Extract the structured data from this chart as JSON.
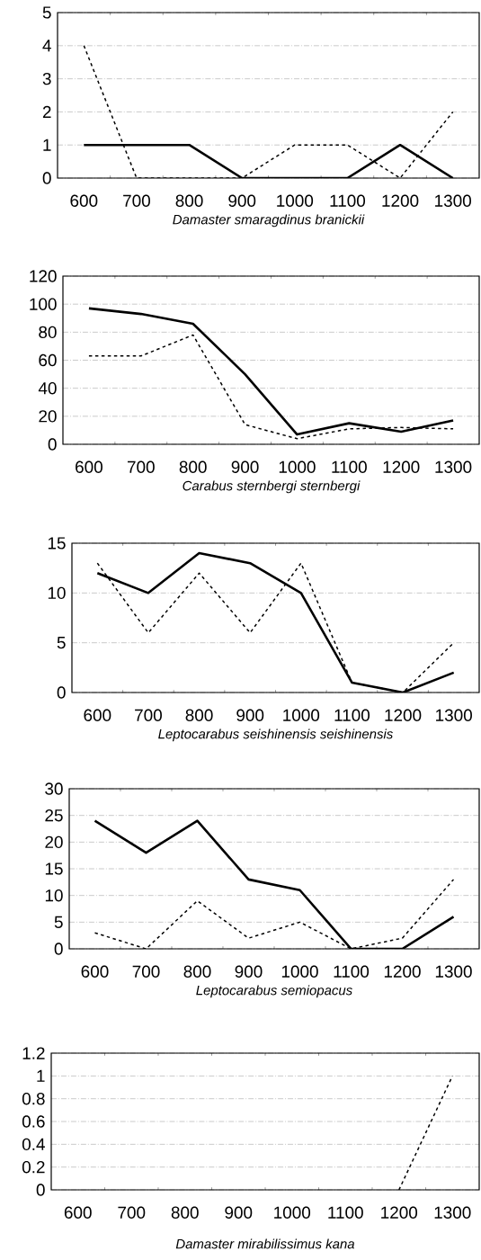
{
  "chart_data": [
    {
      "type": "line",
      "xlabel": "Damaster smaragdinus branickii",
      "categories": [
        "600",
        "700",
        "800",
        "900",
        "1000",
        "1100",
        "1200",
        "1300"
      ],
      "ylim": [
        0,
        5
      ],
      "yticks": [
        0,
        1,
        2,
        3,
        4,
        5
      ],
      "grid": "y",
      "series": [
        {
          "color": "#000000",
          "line_style": "solid",
          "values": [
            1,
            1,
            1,
            0,
            0,
            0,
            1,
            0
          ]
        },
        {
          "color": "#000000",
          "line_style": "dashed",
          "values": [
            4,
            0,
            0,
            0,
            1,
            1,
            0,
            2
          ]
        }
      ]
    },
    {
      "type": "line",
      "xlabel": "Carabus sternbergi sternbergi",
      "categories": [
        "600",
        "700",
        "800",
        "900",
        "1000",
        "1100",
        "1200",
        "1300"
      ],
      "ylim": [
        0,
        120
      ],
      "yticks": [
        0,
        20,
        40,
        60,
        80,
        100,
        120
      ],
      "grid": "y",
      "series": [
        {
          "color": "#000000",
          "line_style": "solid",
          "values": [
            97,
            93,
            86,
            50,
            7,
            15,
            9,
            17
          ]
        },
        {
          "color": "#000000",
          "line_style": "dashed",
          "values": [
            63,
            63,
            78,
            14,
            4,
            11,
            12,
            11
          ]
        }
      ]
    },
    {
      "type": "line",
      "xlabel": "Leptocarabus seishinensis seishinensis",
      "categories": [
        "600",
        "700",
        "800",
        "900",
        "1000",
        "1100",
        "1200",
        "1300"
      ],
      "ylim": [
        0,
        15
      ],
      "yticks": [
        0,
        5,
        10,
        15
      ],
      "grid": "y",
      "series": [
        {
          "color": "#000000",
          "line_style": "solid",
          "values": [
            12,
            10,
            14,
            13,
            10,
            1,
            0,
            2
          ]
        },
        {
          "color": "#000000",
          "line_style": "dashed",
          "values": [
            13,
            6,
            12,
            6,
            13,
            1,
            0,
            5
          ]
        }
      ]
    },
    {
      "type": "line",
      "xlabel": "Leptocarabus semiopacus",
      "categories": [
        "600",
        "700",
        "800",
        "900",
        "1000",
        "1100",
        "1200",
        "1300"
      ],
      "ylim": [
        0,
        30
      ],
      "yticks": [
        0,
        5,
        10,
        15,
        20,
        25,
        30
      ],
      "grid": "y",
      "series": [
        {
          "color": "#000000",
          "line_style": "solid",
          "values": [
            24,
            18,
            24,
            13,
            11,
            0,
            0,
            6
          ]
        },
        {
          "color": "#000000",
          "line_style": "dashed",
          "values": [
            3,
            0,
            9,
            2,
            5,
            0,
            2,
            13
          ]
        }
      ]
    },
    {
      "type": "line",
      "xlabel": "Damaster mirabilissimus kana",
      "categories": [
        "600",
        "700",
        "800",
        "900",
        "1000",
        "1100",
        "1200",
        "1300"
      ],
      "ylim": [
        0,
        1.2
      ],
      "yticks": [
        0,
        0.2,
        0.4,
        0.6,
        0.8,
        1,
        1.2
      ],
      "grid": "y",
      "series": [
        {
          "color": "#000000",
          "line_style": "dashed",
          "values": [
            null,
            null,
            null,
            null,
            null,
            null,
            0,
            1
          ]
        }
      ]
    }
  ]
}
